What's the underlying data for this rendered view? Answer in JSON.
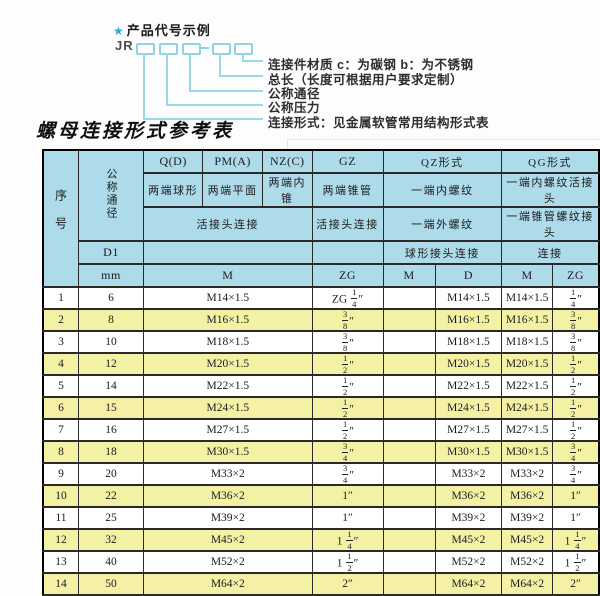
{
  "colors": {
    "header_blue": "#addbea",
    "row_yellow": "#f5f1a4",
    "diagram_cyan": "#8fd3e6",
    "star_blue": "#2aa9de"
  },
  "diagram": {
    "star": "★",
    "heading": "产品代号示例",
    "prefix": "JR",
    "labels": [
      "连接件材质  c：为碳钢  b：为不锈钢",
      "总长（长度可根据用户要求定制）",
      "公称通径",
      "公称压力",
      "连接形式：见金属软管常用结构形式表"
    ]
  },
  "section_title": "螺母连接形式参考表",
  "table": {
    "header": {
      "seq": "序号",
      "bore": "公称通径",
      "d1": "D1",
      "unit": "mm",
      "q_code": "Q(D)",
      "q_ends": "两端球形",
      "pm_code": "PM(A)",
      "pm_ends": "两端平面",
      "nz_code": "NZ(C)",
      "nz_ends": "两端内锥",
      "gz_code": "GZ",
      "gz_ends": "两端锥管",
      "gz_row3": "活接头连接",
      "gz_unit": "ZG",
      "qpmnz_row3": "活接头连接",
      "qpmnz_unit": "M",
      "qz_code": "QZ形式",
      "qz_row2": "一端内螺纹",
      "qz_row3": "一端外螺纹",
      "qz_row4": "球形接头连接",
      "qz_m": "M",
      "qz_d": "D",
      "qg_code": "QG形式",
      "qg_row2": "一端内螺纹活接头",
      "qg_row3": "一端锥管螺纹接头",
      "qg_row4": "连接",
      "qg_m": "M",
      "qg_zg": "ZG"
    },
    "rows": [
      {
        "seq": "1",
        "dn": "6",
        "m": "M14×1.5",
        "gz": "ZG 1/4″",
        "qz_m": "",
        "qz_d": "M14×1.5",
        "qg_m": "M14×1.5",
        "qg_zg": "1/4″"
      },
      {
        "seq": "2",
        "dn": "8",
        "m": "M16×1.5",
        "gz": "3/8″",
        "qz_m": "",
        "qz_d": "M16×1.5",
        "qg_m": "M16×1.5",
        "qg_zg": "3/8″"
      },
      {
        "seq": "3",
        "dn": "10",
        "m": "M18×1.5",
        "gz": "3/8″",
        "qz_m": "",
        "qz_d": "M18×1.5",
        "qg_m": "M18×1.5",
        "qg_zg": "3/8″"
      },
      {
        "seq": "4",
        "dn": "12",
        "m": "M20×1.5",
        "gz": "1/2″",
        "qz_m": "",
        "qz_d": "M20×1.5",
        "qg_m": "M20×1.5",
        "qg_zg": "1/2″"
      },
      {
        "seq": "5",
        "dn": "14",
        "m": "M22×1.5",
        "gz": "1/2″",
        "qz_m": "",
        "qz_d": "M22×1.5",
        "qg_m": "M22×1.5",
        "qg_zg": "1/2″"
      },
      {
        "seq": "6",
        "dn": "15",
        "m": "M24×1.5",
        "gz": "1/2″",
        "qz_m": "",
        "qz_d": "M24×1.5",
        "qg_m": "M24×1.5",
        "qg_zg": "1/2″"
      },
      {
        "seq": "7",
        "dn": "16",
        "m": "M27×1.5",
        "gz": "1/2″",
        "qz_m": "",
        "qz_d": "M27×1.5",
        "qg_m": "M27×1.5",
        "qg_zg": "1/2″"
      },
      {
        "seq": "8",
        "dn": "18",
        "m": "M30×1.5",
        "gz": "3/4″",
        "qz_m": "",
        "qz_d": "M30×1.5",
        "qg_m": "M30×1.5",
        "qg_zg": "3/4″"
      },
      {
        "seq": "9",
        "dn": "20",
        "m": "M33×2",
        "gz": "3/4″",
        "qz_m": "",
        "qz_d": "M33×2",
        "qg_m": "M33×2",
        "qg_zg": "3/4″"
      },
      {
        "seq": "10",
        "dn": "22",
        "m": "M36×2",
        "gz": "1″",
        "qz_m": "",
        "qz_d": "M36×2",
        "qg_m": "M36×2",
        "qg_zg": "1″"
      },
      {
        "seq": "11",
        "dn": "25",
        "m": "M39×2",
        "gz": "1″",
        "qz_m": "",
        "qz_d": "M39×2",
        "qg_m": "M39×2",
        "qg_zg": "1″"
      },
      {
        "seq": "12",
        "dn": "32",
        "m": "M45×2",
        "gz": "1 1/4″",
        "qz_m": "",
        "qz_d": "M45×2",
        "qg_m": "M45×2",
        "qg_zg": "1 1/4″"
      },
      {
        "seq": "13",
        "dn": "40",
        "m": "M52×2",
        "gz": "1 1/2″",
        "qz_m": "",
        "qz_d": "M52×2",
        "qg_m": "M52×2",
        "qg_zg": "1 1/2″"
      },
      {
        "seq": "14",
        "dn": "50",
        "m": "M64×2",
        "gz": "2″",
        "qz_m": "",
        "qz_d": "M64×2",
        "qg_m": "M64×2",
        "qg_zg": "2″"
      }
    ]
  }
}
